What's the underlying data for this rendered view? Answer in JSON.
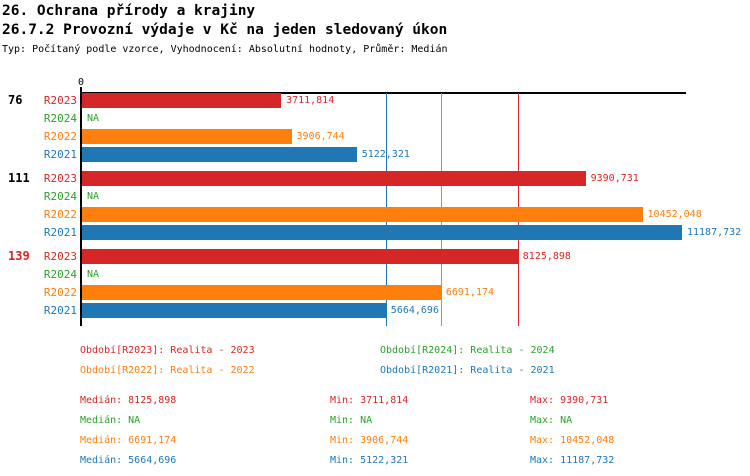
{
  "header": {
    "title_line1": "26. Ochrana přírody a krajiny",
    "title_line2": "26.7.2 Provozní výdaje v Kč na jeden sledovaný úkon",
    "subtitle": "Typ: Počítaný podle vzorce, Vyhodnocení: Absolutní hodnoty, Průměr: Medián"
  },
  "colors": {
    "R2023": "#d62728",
    "R2024": "#2ca02c",
    "R2022": "#ff7f0e",
    "R2021": "#1f77b4",
    "axis": "#000000",
    "background": "#ffffff",
    "group_label_default": "#000000",
    "group_label_highlight": "#d62728"
  },
  "chart_data": {
    "type": "bar",
    "orientation": "horizontal",
    "title": "26.7.2 Provozní výdaje v Kč na jeden sledovaný úkon",
    "xlabel": "",
    "ylabel": "",
    "xlim": [
      0,
      11250
    ],
    "origin_tick_label": "0",
    "grid": false,
    "series_order": [
      "R2023",
      "R2024",
      "R2022",
      "R2021"
    ],
    "groups": [
      {
        "label": "76",
        "highlighted": false,
        "bars": [
          {
            "series": "R2023",
            "value": 3711.814,
            "display": "3711,814"
          },
          {
            "series": "R2024",
            "value": null,
            "display": "NA"
          },
          {
            "series": "R2022",
            "value": 3906.744,
            "display": "3906,744"
          },
          {
            "series": "R2021",
            "value": 5122.321,
            "display": "5122,321"
          }
        ]
      },
      {
        "label": "111",
        "highlighted": false,
        "bars": [
          {
            "series": "R2023",
            "value": 9390.731,
            "display": "9390,731"
          },
          {
            "series": "R2024",
            "value": null,
            "display": "NA"
          },
          {
            "series": "R2022",
            "value": 10452.048,
            "display": "10452,048"
          },
          {
            "series": "R2021",
            "value": 11187.732,
            "display": "11187,732"
          }
        ]
      },
      {
        "label": "139",
        "highlighted": true,
        "bars": [
          {
            "series": "R2023",
            "value": 8125.898,
            "display": "8125,898"
          },
          {
            "series": "R2024",
            "value": null,
            "display": "NA"
          },
          {
            "series": "R2022",
            "value": 6691.174,
            "display": "6691,174"
          },
          {
            "series": "R2021",
            "value": 5664.696,
            "display": "5664,696"
          }
        ]
      }
    ],
    "median_lines": [
      {
        "series": "R2021",
        "value": 5664.696
      },
      {
        "series": "R2022",
        "value": 6691.174
      },
      {
        "series": "R2023",
        "value": 8125.898
      }
    ]
  },
  "legend": {
    "items": [
      {
        "series": "R2023",
        "label": "Období[R2023]: Realita - 2023"
      },
      {
        "series": "R2024",
        "label": "Období[R2024]: Realita - 2024"
      },
      {
        "series": "R2022",
        "label": "Období[R2022]: Realita - 2022"
      },
      {
        "series": "R2021",
        "label": "Období[R2021]: Realita - 2021"
      }
    ]
  },
  "stats": {
    "labels": {
      "median": "Medián",
      "min": "Min",
      "max": "Max"
    },
    "rows": [
      {
        "series": "R2023",
        "median": "8125,898",
        "min": "3711,814",
        "max": "9390,731"
      },
      {
        "series": "R2024",
        "median": "NA",
        "min": "NA",
        "max": "NA"
      },
      {
        "series": "R2022",
        "median": "6691,174",
        "min": "3906,744",
        "max": "10452,048"
      },
      {
        "series": "R2021",
        "median": "5664,696",
        "min": "5122,321",
        "max": "11187,732"
      }
    ]
  }
}
